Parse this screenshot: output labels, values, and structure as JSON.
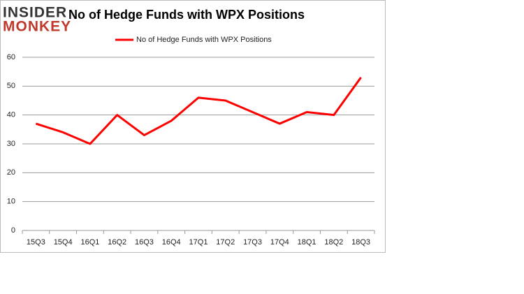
{
  "logo": {
    "line1": "INSIDER",
    "line2": "MONKEY"
  },
  "chart_data": {
    "type": "line",
    "title": "No of Hedge Funds with WPX Positions",
    "categories": [
      "15Q3",
      "15Q4",
      "16Q1",
      "16Q2",
      "16Q3",
      "16Q4",
      "17Q1",
      "17Q2",
      "17Q3",
      "17Q4",
      "18Q1",
      "18Q2",
      "18Q3"
    ],
    "series": [
      {
        "name": "No of Hedge Funds with WPX Positions",
        "color": "#ff0000",
        "values": [
          37,
          34,
          30,
          40,
          33,
          38,
          46,
          45,
          41,
          37,
          41,
          40,
          53
        ]
      }
    ],
    "ylim": [
      0,
      60
    ],
    "yticks": [
      0,
      10,
      20,
      30,
      40,
      50,
      60
    ],
    "grid": true,
    "legend": "top"
  }
}
